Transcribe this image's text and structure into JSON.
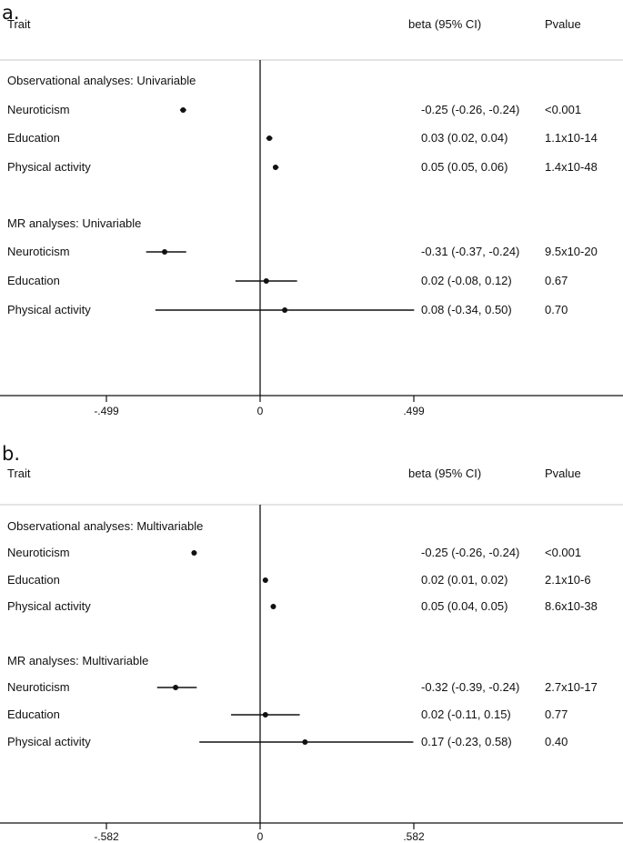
{
  "chart_data": [
    {
      "type": "forest",
      "panel_label": "a.",
      "header": {
        "trait": "Trait",
        "beta": "beta (95% CI)",
        "pvalue": "Pvalue"
      },
      "x_ticks": [
        -0.499,
        0,
        0.499
      ],
      "x_tick_labels": [
        "-.499",
        "0",
        ".499"
      ],
      "xlim": [
        -0.84,
        1.16
      ],
      "rows": [
        {
          "kind": "section",
          "label": "Observational analyses: Univariable"
        },
        {
          "kind": "estimate",
          "label": "Neuroticism",
          "beta": -0.25,
          "lo": -0.26,
          "hi": -0.24,
          "ci_text": "-0.25 (-0.26, -0.24)",
          "p_text": "<0.001"
        },
        {
          "kind": "estimate",
          "label": "Education",
          "beta": 0.03,
          "lo": 0.02,
          "hi": 0.04,
          "ci_text": "0.03 (0.02, 0.04)",
          "p_text": "1.1x10-14"
        },
        {
          "kind": "estimate",
          "label": "Physical activity",
          "beta": 0.05,
          "lo": 0.05,
          "hi": 0.06,
          "ci_text": "0.05 (0.05, 0.06)",
          "p_text": "1.4x10-48"
        },
        {
          "kind": "section",
          "label": "MR analyses: Univariable"
        },
        {
          "kind": "estimate",
          "label": "Neuroticism",
          "beta": -0.31,
          "lo": -0.37,
          "hi": -0.24,
          "ci_text": "-0.31 (-0.37, -0.24)",
          "p_text": "9.5x10-20"
        },
        {
          "kind": "estimate",
          "label": "Education",
          "beta": 0.02,
          "lo": -0.08,
          "hi": 0.12,
          "ci_text": "0.02 (-0.08, 0.12)",
          "p_text": "0.67"
        },
        {
          "kind": "estimate",
          "label": "Physical activity",
          "beta": 0.08,
          "lo": -0.34,
          "hi": 0.5,
          "ci_text": "0.08 (-0.34, 0.50)",
          "p_text": "0.70"
        }
      ]
    },
    {
      "type": "forest",
      "panel_label": "b.",
      "header": {
        "trait": "Trait",
        "beta": "beta (95% CI)",
        "pvalue": "Pvalue"
      },
      "x_ticks": [
        -0.582,
        0,
        0.582
      ],
      "x_tick_labels": [
        "-.582",
        "0",
        ".582"
      ],
      "xlim": [
        -0.98,
        1.36
      ],
      "rows": [
        {
          "kind": "section",
          "label": "Observational analyses: Multivariable"
        },
        {
          "kind": "estimate",
          "label": "Neuroticism",
          "beta": -0.25,
          "lo": -0.26,
          "hi": -0.24,
          "ci_text": "-0.25 (-0.26, -0.24)",
          "p_text": "<0.001"
        },
        {
          "kind": "estimate",
          "label": "Education",
          "beta": 0.02,
          "lo": 0.01,
          "hi": 0.02,
          "ci_text": "0.02 (0.01, 0.02)",
          "p_text": "2.1x10-6"
        },
        {
          "kind": "estimate",
          "label": "Physical activity",
          "beta": 0.05,
          "lo": 0.04,
          "hi": 0.05,
          "ci_text": "0.05 (0.04, 0.05)",
          "p_text": "8.6x10-38"
        },
        {
          "kind": "section",
          "label": "MR analyses: Multivariable"
        },
        {
          "kind": "estimate",
          "label": "Neuroticism",
          "beta": -0.32,
          "lo": -0.39,
          "hi": -0.24,
          "ci_text": "-0.32 (-0.39, -0.24)",
          "p_text": "2.7x10-17"
        },
        {
          "kind": "estimate",
          "label": "Education",
          "beta": 0.02,
          "lo": -0.11,
          "hi": 0.15,
          "ci_text": "0.02 (-0.11, 0.15)",
          "p_text": "0.77"
        },
        {
          "kind": "estimate",
          "label": "Physical activity",
          "beta": 0.17,
          "lo": -0.23,
          "hi": 0.58,
          "ci_text": "0.17 (-0.23, 0.58)",
          "p_text": "0.40"
        }
      ]
    }
  ]
}
